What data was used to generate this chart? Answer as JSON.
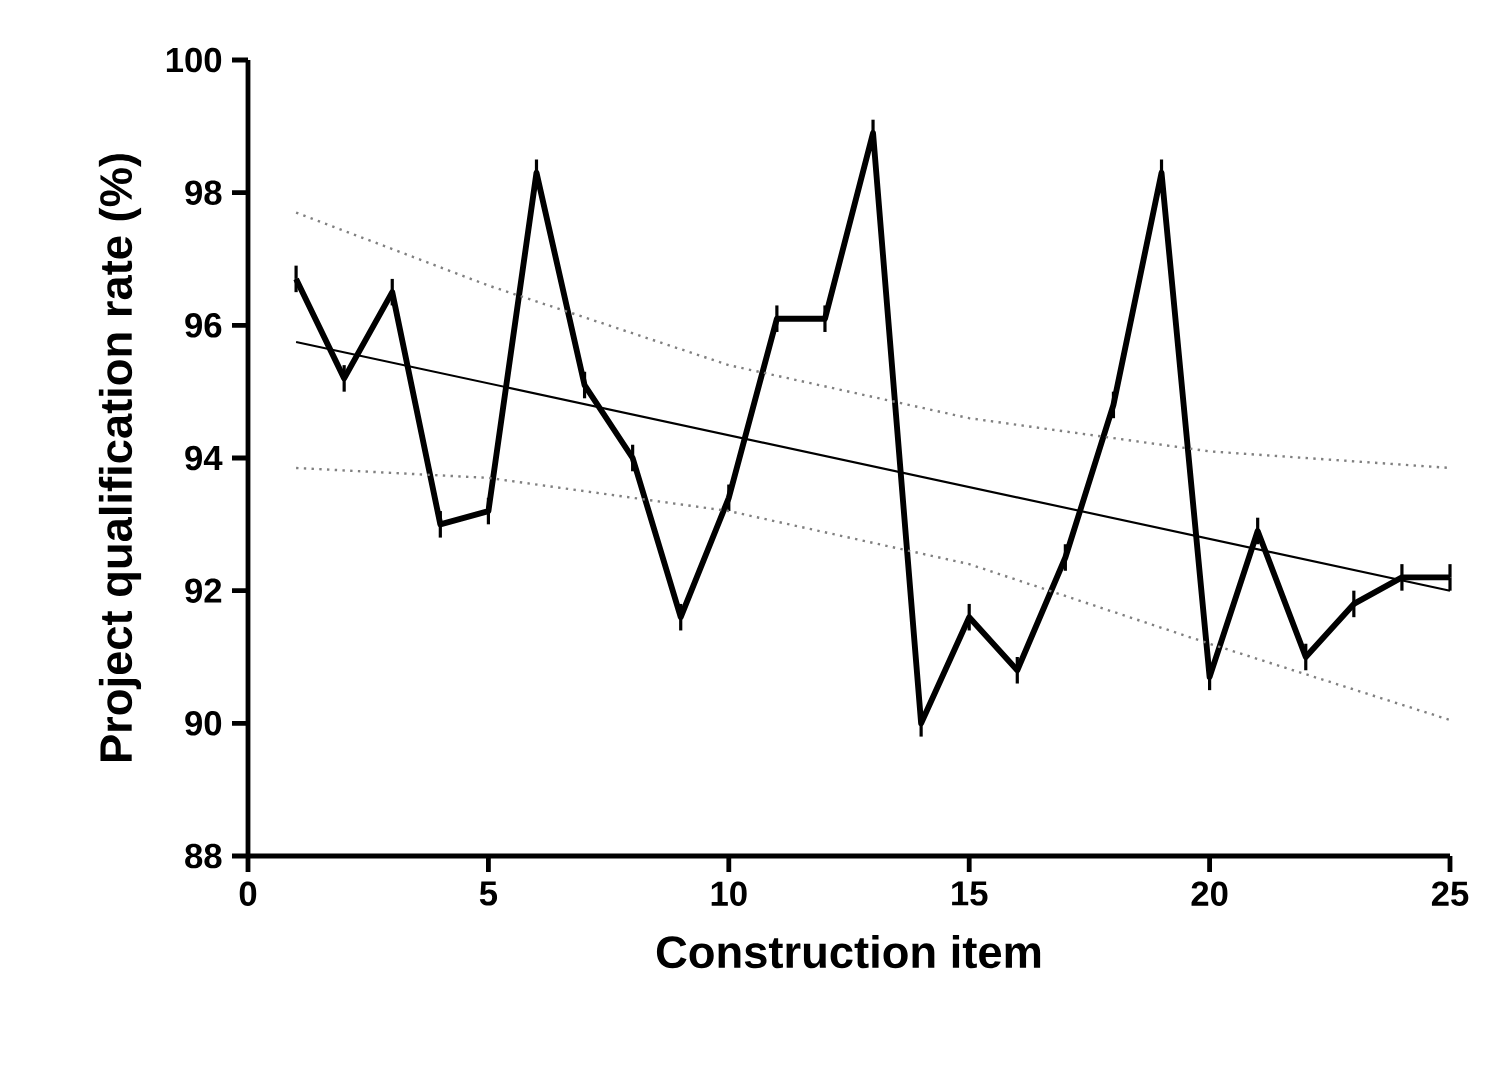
{
  "chart_data": {
    "type": "line",
    "xlabel": "Construction item",
    "ylabel": "Project qualification rate (%)",
    "x": [
      1,
      2,
      3,
      4,
      5,
      6,
      7,
      8,
      9,
      10,
      11,
      12,
      13,
      14,
      15,
      16,
      17,
      18,
      19,
      20,
      21,
      22,
      23,
      24,
      25
    ],
    "series": [
      {
        "color": "#000000",
        "values": [
          96.7,
          95.2,
          96.5,
          93.0,
          93.2,
          98.3,
          95.1,
          94.0,
          91.6,
          93.4,
          96.1,
          96.1,
          98.9,
          90.0,
          91.6,
          90.8,
          92.5,
          94.8,
          98.3,
          90.7,
          92.9,
          91.0,
          91.8,
          92.2,
          92.2
        ],
        "errors": [
          0.2,
          0.2,
          0.2,
          0.2,
          0.2,
          0.2,
          0.2,
          0.2,
          0.2,
          0.2,
          0.2,
          0.2,
          0.2,
          0.2,
          0.2,
          0.2,
          0.2,
          0.2,
          0.2,
          0.2,
          0.2,
          0.2,
          0.2,
          0.2,
          0.2
        ]
      },
      {
        "color": "#000000",
        "x": [
          1,
          25
        ],
        "values": [
          95.75,
          92.0
        ],
        "line_style": "solid"
      },
      {
        "color": "#808080",
        "x": [
          1,
          5,
          10,
          15,
          20,
          25
        ],
        "values": [
          97.7,
          96.6,
          95.4,
          94.6,
          94.1,
          93.85
        ],
        "line_style": "dotted"
      },
      {
        "color": "#808080",
        "x": [
          1,
          5,
          10,
          15,
          20,
          25
        ],
        "values": [
          93.85,
          93.7,
          93.2,
          92.4,
          91.2,
          90.05
        ],
        "line_style": "dotted"
      }
    ],
    "xlim": [
      0,
      25
    ],
    "xticks": [
      0,
      5,
      10,
      15,
      20,
      25
    ],
    "ylim": [
      88,
      100
    ],
    "yticks": [
      88,
      90,
      92,
      94,
      96,
      98,
      100
    ],
    "marker": "none"
  }
}
